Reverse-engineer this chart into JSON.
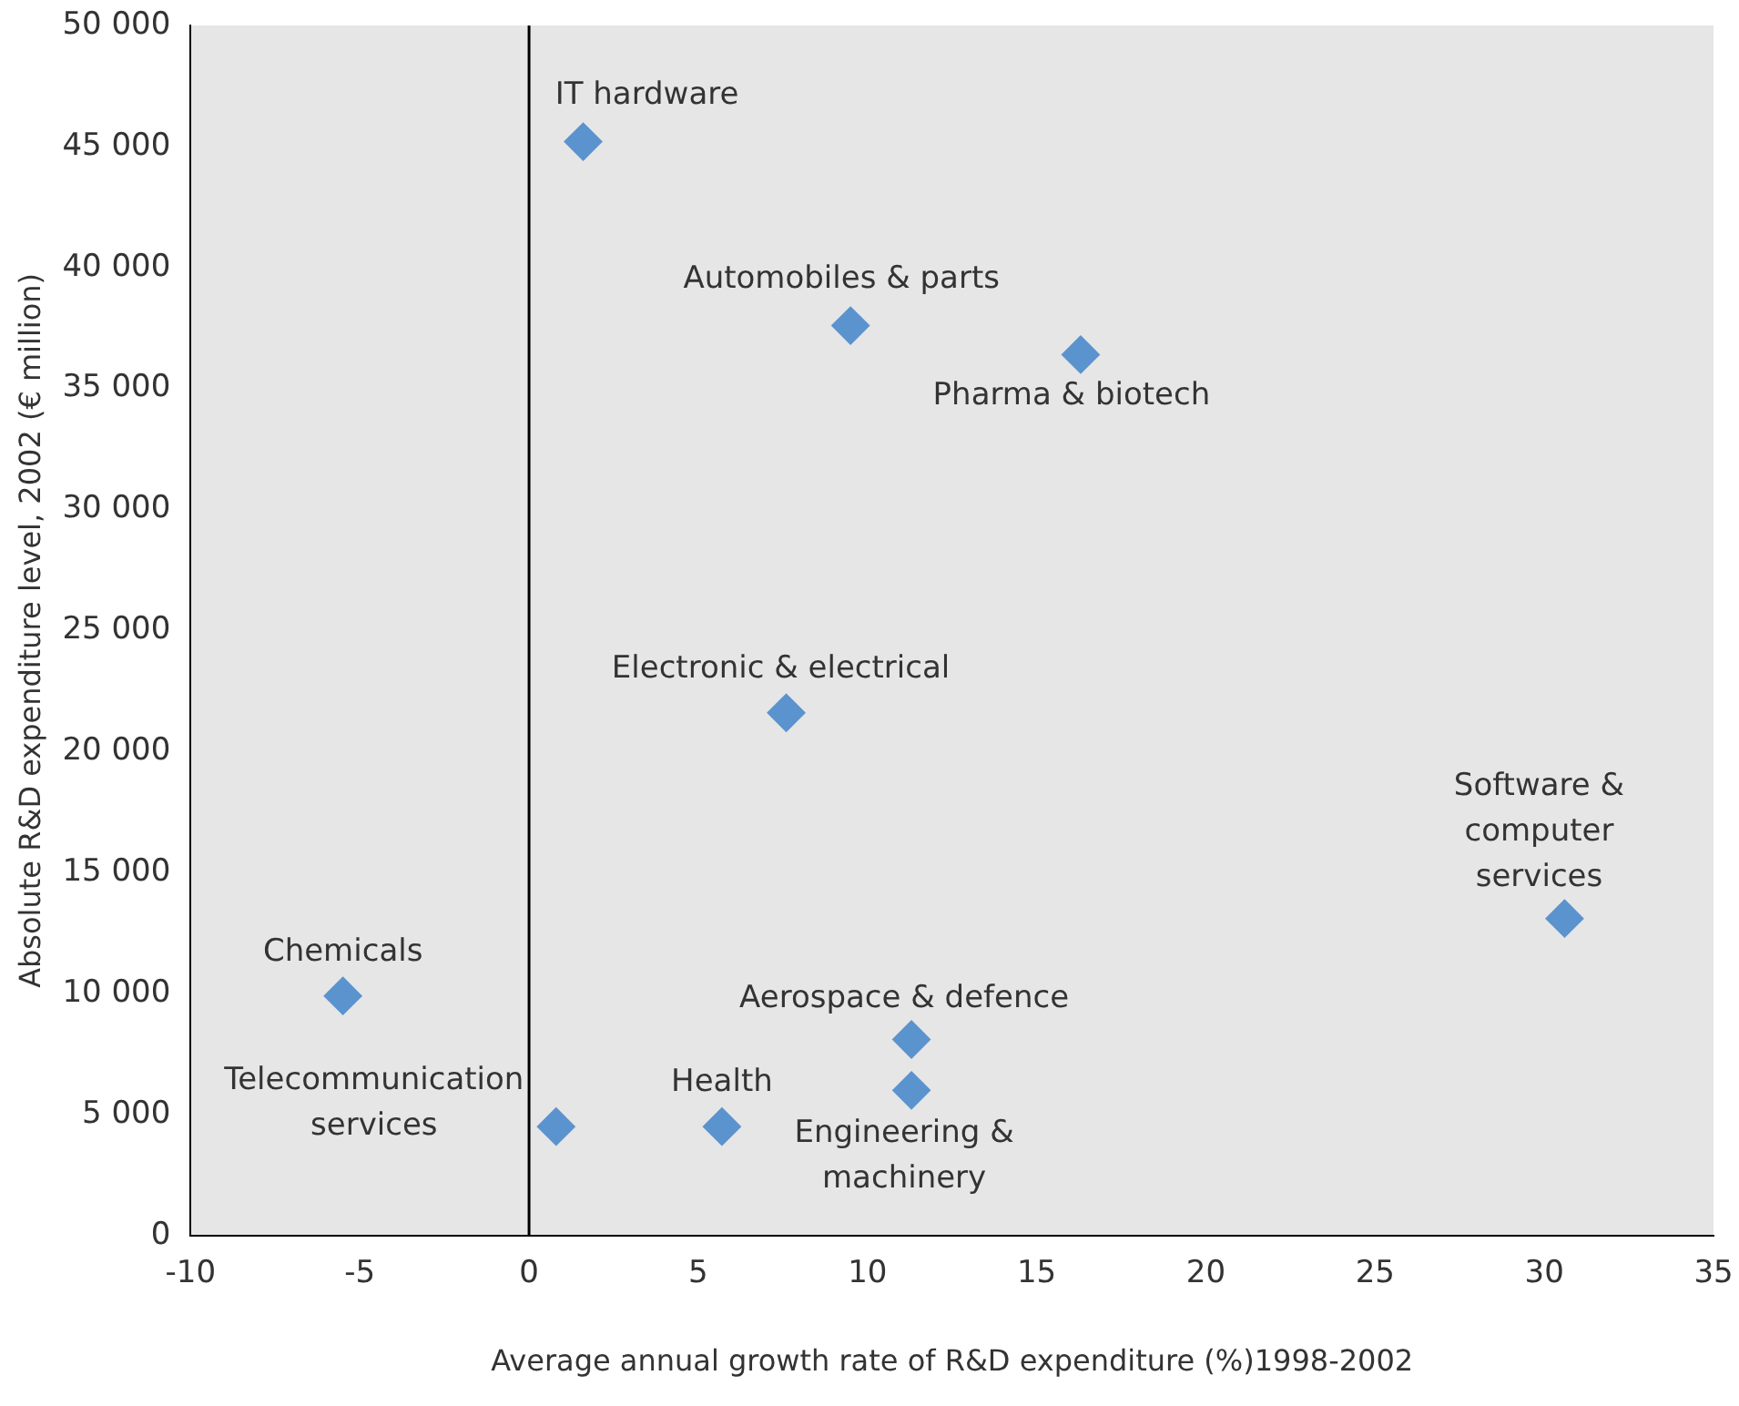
{
  "chart_data": {
    "type": "scatter",
    "xlabel": "Average annual growth rate of R&D expenditure (%)1998-2002",
    "ylabel": "Absolute R&D expenditure level, 2002 (€ million)",
    "series": [
      {
        "name": "IT hardware",
        "color": "#5b93cf",
        "x": [
          1.6
        ],
        "values": [
          45200
        ]
      },
      {
        "name": "Automobiles & parts",
        "color": "#5b93cf",
        "x": [
          9.5
        ],
        "values": [
          37600
        ]
      },
      {
        "name": "Pharma & biotech",
        "color": "#5b93cf",
        "x": [
          16.3
        ],
        "values": [
          36400
        ]
      },
      {
        "name": "Electronic & electrical",
        "color": "#5b93cf",
        "x": [
          7.6
        ],
        "values": [
          21600
        ]
      },
      {
        "name": "Software & computer services",
        "color": "#5b93cf",
        "x": [
          30.6
        ],
        "values": [
          13100
        ]
      },
      {
        "name": "Chemicals",
        "color": "#5b93cf",
        "x": [
          -5.5
        ],
        "values": [
          9900
        ]
      },
      {
        "name": "Aerospace & defence",
        "color": "#5b93cf",
        "x": [
          11.3
        ],
        "values": [
          8100
        ]
      },
      {
        "name": "Engineering & machinery",
        "color": "#5b93cf",
        "x": [
          11.3
        ],
        "values": [
          6000
        ]
      },
      {
        "name": "Telecommunication services",
        "color": "#5b93cf",
        "x": [
          0.8
        ],
        "values": [
          4500
        ]
      },
      {
        "name": "Health",
        "color": "#5b93cf",
        "x": [
          5.7
        ],
        "values": [
          4500
        ]
      }
    ],
    "xlim": [
      -10,
      35
    ],
    "xticks": [
      -10,
      -5,
      0,
      5,
      10,
      15,
      20,
      25,
      30,
      35
    ],
    "ylim": [
      0,
      50000
    ],
    "yticks": [
      0,
      {
        "value": 5000,
        "label": "5 000"
      },
      {
        "value": 10000,
        "label": "10 000"
      },
      {
        "value": 15000,
        "label": "15 000"
      },
      {
        "value": 20000,
        "label": "20 000"
      },
      {
        "value": 25000,
        "label": "25 000"
      },
      {
        "value": 30000,
        "label": "30 000"
      },
      {
        "value": 35000,
        "label": "35 000"
      },
      {
        "value": 40000,
        "label": "40 000"
      },
      {
        "value": 45000,
        "label": "45 000"
      },
      {
        "value": 50000,
        "label": "50 000"
      }
    ],
    "ref_lines": [
      {
        "axis": "x",
        "value": 0,
        "color": "#000000"
      }
    ],
    "marker": "diamond",
    "grid": false,
    "legend": false
  }
}
